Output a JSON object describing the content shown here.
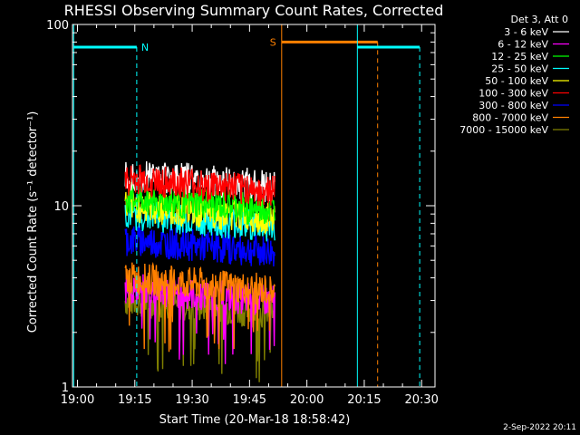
{
  "chart_data": {
    "type": "line",
    "title": "RHESSI Observing Summary Count Rates, Corrected",
    "xlabel": "Start Time (20-Mar-18 18:58:42)",
    "ylabel": "Corrected Count Rate (s⁻¹ detector⁻¹)",
    "x_ticks": [
      "19:00",
      "19:15",
      "19:30",
      "19:45",
      "20:00",
      "20:15",
      "20:30"
    ],
    "x_tick_minutes": [
      0,
      15,
      30,
      45,
      60,
      75,
      90
    ],
    "x_range_minutes": [
      -1.3,
      93.5
    ],
    "y_scale": "log",
    "ylim": [
      1,
      100
    ],
    "y_ticks": [
      "1",
      "10",
      "100"
    ],
    "y_tick_values": [
      1,
      10,
      100
    ],
    "legend_title": "Det 3, Att 0",
    "legend_position": "top-right",
    "data_start_minute": 12.5,
    "data_end_minute": 51.6,
    "series": [
      {
        "name": "3 - 6 keV",
        "color": "#ffffff",
        "level": 15
      },
      {
        "name": "6 - 12 keV",
        "color": "#ff00ff",
        "level": 3.5
      },
      {
        "name": "12 - 25 keV",
        "color": "#00ff00",
        "level": 11
      },
      {
        "name": "25 - 50 keV",
        "color": "#00ffff",
        "level": 9
      },
      {
        "name": "50 - 100 keV",
        "color": "#ffff00",
        "level": 10
      },
      {
        "name": "100 - 300 keV",
        "color": "#ff0000",
        "level": 14
      },
      {
        "name": "300 - 800 keV",
        "color": "#0000ff",
        "level": 6.5
      },
      {
        "name": "800 - 7000 keV",
        "color": "#ff8000",
        "level": 4
      },
      {
        "name": "7000 - 15000 keV",
        "color": "#808000",
        "level": 3
      }
    ],
    "annotations": [
      {
        "label": "N",
        "color": "#00ffff",
        "start": -1.0,
        "end": 15.5,
        "value": 75,
        "start_line": "solid",
        "end_line": "dashed"
      },
      {
        "label": "S",
        "color": "#ff8000",
        "start": 53.4,
        "end": 78.5,
        "value": 80,
        "start_line": "solid",
        "end_line": "dashed"
      },
      {
        "label": "",
        "color": "#00ffff",
        "start": 73.2,
        "end": 89.5,
        "value": 75,
        "start_line": "solid",
        "end_line": "dashed"
      }
    ]
  },
  "footer_date": "2-Sep-2022 20:11"
}
